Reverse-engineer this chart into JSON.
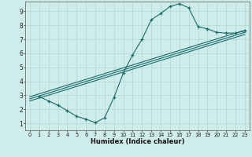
{
  "title": "",
  "xlabel": "Humidex (Indice chaleur)",
  "background_color": "#ceecea",
  "line_color": "#1a6b6b",
  "xlim": [
    -0.5,
    23.5
  ],
  "ylim": [
    0.5,
    9.7
  ],
  "xticks": [
    0,
    1,
    2,
    3,
    4,
    5,
    6,
    7,
    8,
    9,
    10,
    11,
    12,
    13,
    14,
    15,
    16,
    17,
    18,
    19,
    20,
    21,
    22,
    23
  ],
  "yticks": [
    1,
    2,
    3,
    4,
    5,
    6,
    7,
    8,
    9
  ],
  "curve1_x": [
    1,
    2,
    3,
    4,
    5,
    6,
    7,
    8,
    9,
    10,
    11,
    12,
    13,
    14,
    15,
    16,
    17,
    18,
    19,
    20,
    21,
    22,
    23
  ],
  "curve1_y": [
    2.9,
    2.6,
    2.3,
    1.9,
    1.5,
    1.3,
    1.05,
    1.4,
    2.85,
    4.6,
    5.9,
    7.0,
    8.4,
    8.85,
    9.35,
    9.55,
    9.25,
    7.9,
    7.75,
    7.5,
    7.45,
    7.45,
    7.6
  ],
  "line1_x": [
    0,
    23
  ],
  "line1_y": [
    2.9,
    7.65
  ],
  "line2_x": [
    0,
    23
  ],
  "line2_y": [
    2.75,
    7.5
  ],
  "line3_x": [
    0,
    23
  ],
  "line3_y": [
    2.6,
    7.35
  ]
}
